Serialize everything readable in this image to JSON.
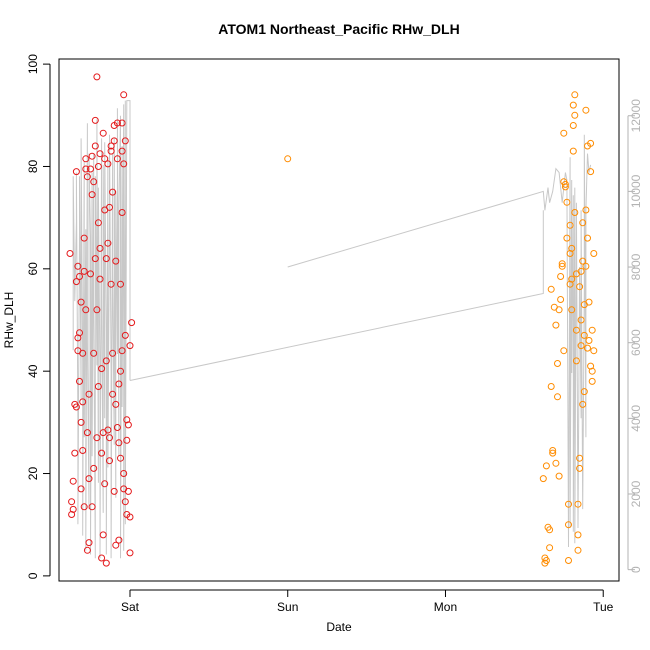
{
  "chart_data": {
    "type": "scatter",
    "title": "ATOM1 Northeast_Pacific RHw_DLH",
    "xlabel": "Date",
    "ylabel": "RHw_DLH",
    "x_ticks": [
      "Sat",
      "Sun",
      "Mon",
      "Tue"
    ],
    "xlim": [
      -0.45,
      3.1
    ],
    "ylim": [
      -1,
      101
    ],
    "y_ticks": [
      0,
      20,
      40,
      60,
      80,
      100
    ],
    "y2lim": [
      -300,
      13500
    ],
    "y2_ticks": [
      0,
      2000,
      4000,
      6000,
      8000,
      10000,
      12000
    ],
    "grid": false,
    "colors": {
      "series_a": "#e41a1c",
      "series_b": "#ff8c00",
      "line": "#c8c8c8"
    },
    "series": [
      {
        "marker": "circle-open",
        "color": "#e41a1c",
        "points": [
          [
            -0.38,
            63
          ],
          [
            -0.37,
            14.5
          ],
          [
            -0.37,
            12
          ],
          [
            -0.36,
            13
          ],
          [
            -0.36,
            18.5
          ],
          [
            -0.35,
            33.5
          ],
          [
            -0.35,
            24
          ],
          [
            -0.34,
            33
          ],
          [
            -0.34,
            79
          ],
          [
            -0.34,
            57.5
          ],
          [
            -0.33,
            46.5
          ],
          [
            -0.33,
            44
          ],
          [
            -0.33,
            60.5
          ],
          [
            -0.32,
            47.5
          ],
          [
            -0.32,
            58.5
          ],
          [
            -0.32,
            38
          ],
          [
            -0.31,
            53.5
          ],
          [
            -0.31,
            30
          ],
          [
            -0.31,
            17
          ],
          [
            -0.3,
            43.5
          ],
          [
            -0.3,
            34
          ],
          [
            -0.3,
            24.5
          ],
          [
            -0.29,
            59.5
          ],
          [
            -0.29,
            66
          ],
          [
            -0.29,
            13.5
          ],
          [
            -0.28,
            52
          ],
          [
            -0.28,
            81.5
          ],
          [
            -0.28,
            79.5
          ],
          [
            -0.27,
            78
          ],
          [
            -0.27,
            5
          ],
          [
            -0.27,
            28
          ],
          [
            -0.26,
            6.5
          ],
          [
            -0.26,
            19
          ],
          [
            -0.26,
            35.5
          ],
          [
            -0.25,
            79.5
          ],
          [
            -0.25,
            59
          ],
          [
            -0.24,
            13.5
          ],
          [
            -0.24,
            74.5
          ],
          [
            -0.24,
            82
          ],
          [
            -0.23,
            43.5
          ],
          [
            -0.23,
            21
          ],
          [
            -0.23,
            77
          ],
          [
            -0.22,
            84
          ],
          [
            -0.22,
            89
          ],
          [
            -0.22,
            62
          ],
          [
            -0.21,
            52
          ],
          [
            -0.21,
            27
          ],
          [
            -0.21,
            97.5
          ],
          [
            -0.2,
            80
          ],
          [
            -0.2,
            69
          ],
          [
            -0.2,
            37
          ],
          [
            -0.19,
            58
          ],
          [
            -0.19,
            64
          ],
          [
            -0.19,
            82.5
          ],
          [
            -0.18,
            3.5
          ],
          [
            -0.18,
            40.5
          ],
          [
            -0.18,
            24
          ],
          [
            -0.17,
            86.5
          ],
          [
            -0.17,
            28
          ],
          [
            -0.17,
            8
          ],
          [
            -0.16,
            81.5
          ],
          [
            -0.16,
            71.5
          ],
          [
            -0.16,
            18
          ],
          [
            -0.15,
            42
          ],
          [
            -0.15,
            62
          ],
          [
            -0.15,
            2.5
          ],
          [
            -0.14,
            65
          ],
          [
            -0.14,
            80.5
          ],
          [
            -0.14,
            28.5
          ],
          [
            -0.13,
            72
          ],
          [
            -0.13,
            27
          ],
          [
            -0.13,
            22.5
          ],
          [
            -0.12,
            84
          ],
          [
            -0.12,
            83
          ],
          [
            -0.12,
            57
          ],
          [
            -0.11,
            75
          ],
          [
            -0.11,
            35.5
          ],
          [
            -0.11,
            43.5
          ],
          [
            -0.1,
            85
          ],
          [
            -0.1,
            88
          ],
          [
            -0.1,
            16.5
          ],
          [
            -0.09,
            33.5
          ],
          [
            -0.09,
            6
          ],
          [
            -0.09,
            61.5
          ],
          [
            -0.08,
            81.5
          ],
          [
            -0.08,
            88.5
          ],
          [
            -0.08,
            29
          ],
          [
            -0.07,
            26
          ],
          [
            -0.07,
            7
          ],
          [
            -0.07,
            37.5
          ],
          [
            -0.06,
            40
          ],
          [
            -0.06,
            23
          ],
          [
            -0.06,
            57
          ],
          [
            -0.05,
            83
          ],
          [
            -0.05,
            88.5
          ],
          [
            -0.05,
            71
          ],
          [
            -0.05,
            44
          ],
          [
            -0.04,
            94
          ],
          [
            -0.04,
            80.5
          ],
          [
            -0.04,
            20
          ],
          [
            -0.04,
            17
          ],
          [
            -0.03,
            85
          ],
          [
            -0.03,
            47
          ],
          [
            -0.03,
            14.5
          ],
          [
            -0.02,
            12
          ],
          [
            -0.02,
            30.5
          ],
          [
            -0.02,
            26.5
          ],
          [
            -0.01,
            29.5
          ],
          [
            -0.01,
            16.5
          ],
          [
            0.0,
            4.5
          ],
          [
            0.0,
            11.5
          ],
          [
            0.0,
            45
          ],
          [
            0.01,
            49.5
          ]
        ]
      },
      {
        "marker": "circle-open",
        "color": "#ff8c00",
        "points": [
          [
            1.0,
            81.5
          ],
          [
            2.62,
            19
          ],
          [
            2.63,
            3.5
          ],
          [
            2.63,
            2.5
          ],
          [
            2.64,
            3
          ],
          [
            2.64,
            21.5
          ],
          [
            2.65,
            9.5
          ],
          [
            2.66,
            9
          ],
          [
            2.66,
            5.5
          ],
          [
            2.67,
            37
          ],
          [
            2.67,
            56
          ],
          [
            2.68,
            24
          ],
          [
            2.68,
            24.5
          ],
          [
            2.69,
            52.5
          ],
          [
            2.7,
            49
          ],
          [
            2.7,
            22
          ],
          [
            2.71,
            35
          ],
          [
            2.71,
            41.5
          ],
          [
            2.72,
            52
          ],
          [
            2.72,
            19.5
          ],
          [
            2.73,
            58.5
          ],
          [
            2.73,
            54
          ],
          [
            2.74,
            61
          ],
          [
            2.74,
            60.5
          ],
          [
            2.75,
            44
          ],
          [
            2.75,
            86.5
          ],
          [
            2.75,
            77
          ],
          [
            2.76,
            76.5
          ],
          [
            2.76,
            76
          ],
          [
            2.77,
            73
          ],
          [
            2.77,
            66
          ],
          [
            2.78,
            14
          ],
          [
            2.78,
            10
          ],
          [
            2.78,
            3
          ],
          [
            2.79,
            57
          ],
          [
            2.79,
            63
          ],
          [
            2.79,
            68.5
          ],
          [
            2.8,
            64
          ],
          [
            2.8,
            58
          ],
          [
            2.8,
            52
          ],
          [
            2.81,
            92
          ],
          [
            2.81,
            88
          ],
          [
            2.81,
            83
          ],
          [
            2.82,
            94
          ],
          [
            2.82,
            90
          ],
          [
            2.82,
            71
          ],
          [
            2.83,
            48
          ],
          [
            2.83,
            59
          ],
          [
            2.83,
            42
          ],
          [
            2.84,
            14
          ],
          [
            2.84,
            8
          ],
          [
            2.84,
            5
          ],
          [
            2.85,
            23
          ],
          [
            2.85,
            21
          ],
          [
            2.85,
            56.5
          ],
          [
            2.86,
            45
          ],
          [
            2.86,
            50
          ],
          [
            2.86,
            59.5
          ],
          [
            2.87,
            61.5
          ],
          [
            2.87,
            69
          ],
          [
            2.87,
            33.5
          ],
          [
            2.88,
            36
          ],
          [
            2.88,
            47
          ],
          [
            2.88,
            53
          ],
          [
            2.89,
            71.5
          ],
          [
            2.89,
            60.5
          ],
          [
            2.89,
            91
          ],
          [
            2.9,
            84
          ],
          [
            2.9,
            66
          ],
          [
            2.9,
            44.5
          ],
          [
            2.91,
            53.5
          ],
          [
            2.91,
            46
          ],
          [
            2.92,
            79
          ],
          [
            2.92,
            84.5
          ],
          [
            2.92,
            41
          ],
          [
            2.93,
            38
          ],
          [
            2.93,
            40
          ],
          [
            2.93,
            48
          ],
          [
            2.94,
            63
          ],
          [
            2.94,
            44
          ]
        ]
      }
    ],
    "line": {
      "axis": "right",
      "color": "#c8c8c8",
      "segments": [
        [
          [
            -0.36,
            5800
          ],
          [
            -0.36,
            10400
          ],
          [
            -0.35,
            7100
          ],
          [
            -0.34,
            9200
          ],
          [
            -0.34,
            10500
          ],
          [
            -0.33,
            3800
          ],
          [
            -0.33,
            1200
          ],
          [
            -0.32,
            9000
          ],
          [
            -0.32,
            10400
          ],
          [
            -0.31,
            4500
          ],
          [
            -0.31,
            11400
          ],
          [
            -0.3,
            5500
          ],
          [
            -0.3,
            900
          ],
          [
            -0.29,
            10800
          ],
          [
            -0.29,
            3500
          ],
          [
            -0.28,
            9000
          ],
          [
            -0.28,
            500
          ],
          [
            -0.27,
            11800
          ],
          [
            -0.27,
            6000
          ],
          [
            -0.26,
            1600
          ],
          [
            -0.26,
            11000
          ],
          [
            -0.25,
            8800
          ],
          [
            -0.25,
            400
          ],
          [
            -0.24,
            10500
          ],
          [
            -0.24,
            3000
          ],
          [
            -0.23,
            11000
          ],
          [
            -0.23,
            7000
          ],
          [
            -0.22,
            300
          ],
          [
            -0.22,
            10400
          ],
          [
            -0.21,
            5400
          ],
          [
            -0.21,
            11900
          ],
          [
            -0.2,
            2300
          ],
          [
            -0.2,
            10100
          ],
          [
            -0.19,
            4900
          ],
          [
            -0.19,
            300
          ],
          [
            -0.18,
            11400
          ],
          [
            -0.18,
            7400
          ],
          [
            -0.17,
            1500
          ],
          [
            -0.17,
            10700
          ],
          [
            -0.16,
            4000
          ],
          [
            -0.16,
            11300
          ],
          [
            -0.15,
            6300
          ],
          [
            -0.15,
            400
          ],
          [
            -0.14,
            10900
          ],
          [
            -0.14,
            2700
          ],
          [
            -0.13,
            9300
          ],
          [
            -0.13,
            11500
          ],
          [
            -0.12,
            5100
          ],
          [
            -0.12,
            300
          ],
          [
            -0.11,
            11000
          ],
          [
            -0.11,
            7900
          ],
          [
            -0.1,
            3300
          ],
          [
            -0.1,
            11400
          ],
          [
            -0.09,
            1900
          ],
          [
            -0.09,
            10000
          ],
          [
            -0.08,
            5700
          ],
          [
            -0.08,
            12200
          ],
          [
            -0.07,
            3000
          ],
          [
            -0.07,
            9500
          ],
          [
            -0.06,
            12000
          ],
          [
            -0.06,
            300
          ],
          [
            -0.05,
            11200
          ],
          [
            -0.05,
            4300
          ],
          [
            -0.04,
            12300
          ],
          [
            -0.04,
            500
          ],
          [
            -0.03,
            12400
          ],
          [
            -0.03,
            1200
          ],
          [
            -0.02,
            12400
          ],
          [
            -0.01,
            12400
          ],
          [
            0.0,
            12400
          ],
          [
            0.0,
            5000
          ]
        ],
        [
          [
            1.0,
            8000
          ],
          [
            2.62,
            10000
          ],
          [
            2.63,
            9500
          ],
          [
            2.65,
            10100
          ],
          [
            2.66,
            9700
          ],
          [
            2.68,
            10000
          ],
          [
            2.7,
            10600
          ],
          [
            2.72,
            10500
          ],
          [
            2.74,
            9700
          ],
          [
            2.76,
            10500
          ],
          [
            2.77,
            10300
          ],
          [
            2.78,
            600
          ],
          [
            2.79,
            10900
          ],
          [
            2.79,
            1100
          ],
          [
            2.8,
            10300
          ],
          [
            2.8,
            5200
          ],
          [
            2.81,
            9900
          ],
          [
            2.81,
            1000
          ],
          [
            2.82,
            10100
          ],
          [
            2.82,
            700
          ],
          [
            2.83,
            9700
          ],
          [
            2.84,
            1100
          ],
          [
            2.85,
            8000
          ],
          [
            2.86,
            4000
          ],
          [
            2.86,
            9500
          ],
          [
            2.87,
            1600
          ],
          [
            2.88,
            7400
          ],
          [
            2.88,
            11500
          ],
          [
            2.89,
            3500
          ],
          [
            2.89,
            9500
          ],
          [
            2.9,
            11000
          ],
          [
            2.91,
            10500
          ],
          [
            2.92,
            10700
          ]
        ],
        [
          [
            0.0,
            5000
          ],
          [
            2.62,
            7300
          ],
          [
            2.62,
            9500
          ]
        ]
      ]
    }
  }
}
